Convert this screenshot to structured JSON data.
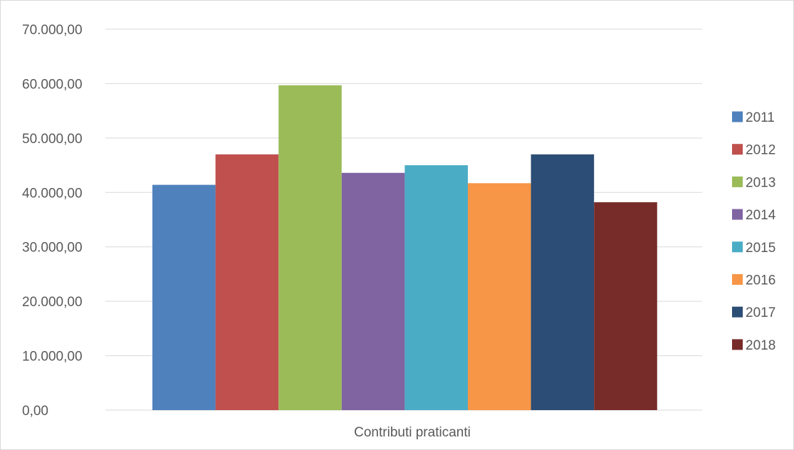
{
  "chart_data": {
    "type": "bar",
    "title": "",
    "xlabel": "",
    "ylabel": "",
    "categories": [
      "Contributi praticanti"
    ],
    "ylim": [
      0,
      70000
    ],
    "y_ticks": [
      0,
      10000,
      20000,
      30000,
      40000,
      50000,
      60000,
      70000
    ],
    "y_tick_labels": [
      "0,00",
      "10.000,00",
      "20.000,00",
      "30.000,00",
      "40.000,00",
      "50.000,00",
      "60.000,00",
      "70.000,00"
    ],
    "grid": true,
    "legend_position": "right",
    "series": [
      {
        "name": "2011",
        "color": "#4f81bd",
        "values": [
          41400
        ]
      },
      {
        "name": "2012",
        "color": "#c0504d",
        "values": [
          47000
        ]
      },
      {
        "name": "2013",
        "color": "#9bbb59",
        "values": [
          59700
        ]
      },
      {
        "name": "2014",
        "color": "#8064a2",
        "values": [
          43600
        ]
      },
      {
        "name": "2015",
        "color": "#4bacc6",
        "values": [
          45000
        ]
      },
      {
        "name": "2016",
        "color": "#f79646",
        "values": [
          41700
        ]
      },
      {
        "name": "2017",
        "color": "#2c4d75",
        "values": [
          47000
        ]
      },
      {
        "name": "2018",
        "color": "#772c2a",
        "values": [
          38200
        ]
      }
    ]
  }
}
